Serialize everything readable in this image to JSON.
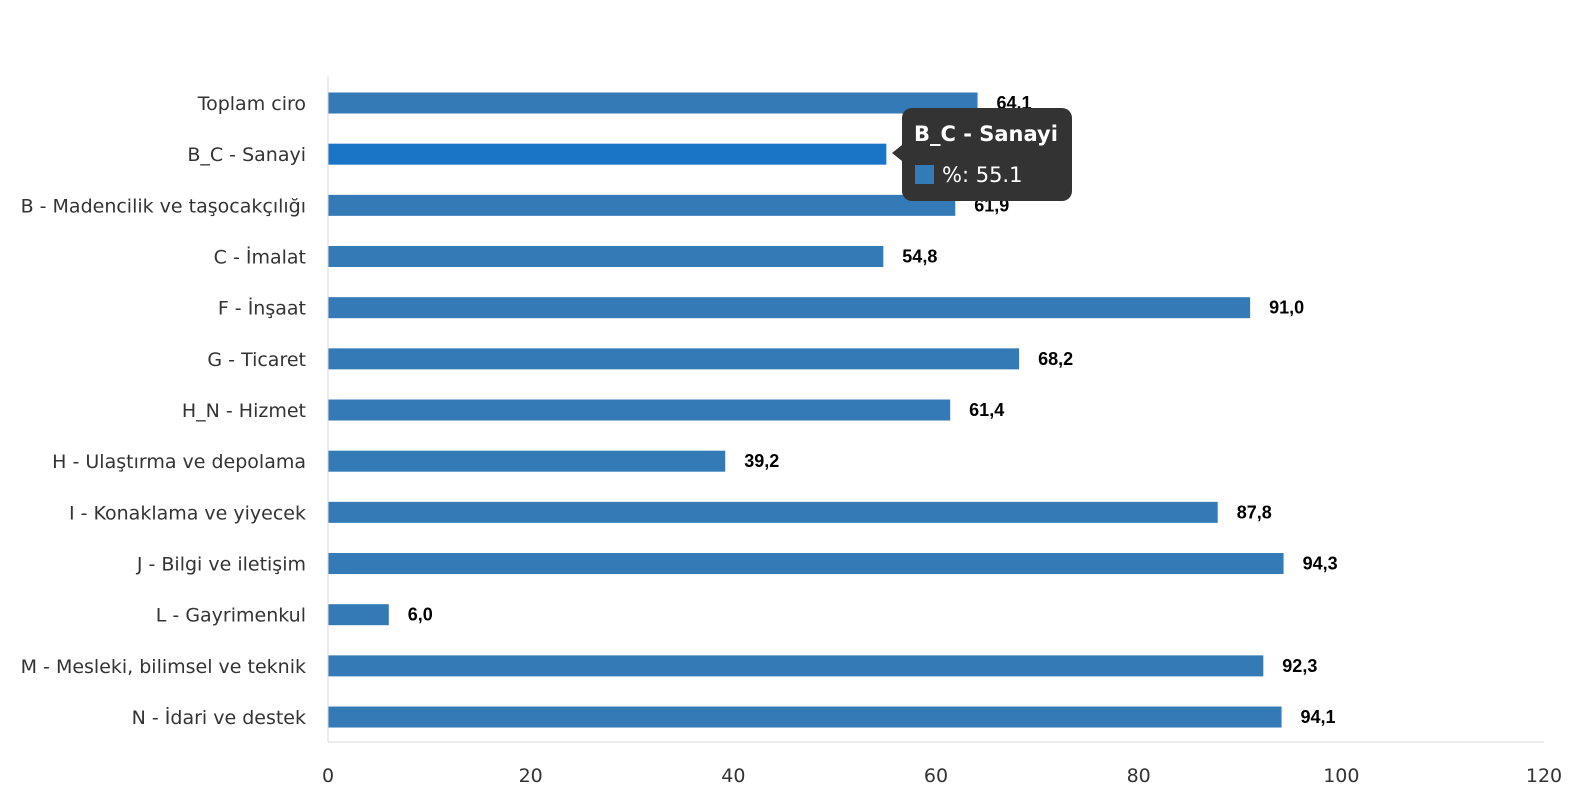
{
  "chart_data": {
    "type": "bar",
    "orientation": "horizontal",
    "categories": [
      "Toplam ciro",
      "B_C - Sanayi",
      "B - Madencilik ve taşocakçılığı",
      "C - İmalat",
      "F - İnşaat",
      "G - Ticaret",
      "H_N - Hizmet",
      "H - Ulaştırma ve depolama",
      "I - Konaklama ve yiyecek",
      "J - Bilgi ve iletişim",
      "L - Gayrimenkul",
      "M - Mesleki, bilimsel ve teknik",
      "N - İdari ve destek"
    ],
    "values": [
      64.1,
      55.1,
      61.9,
      54.8,
      91.0,
      68.2,
      61.4,
      39.2,
      87.8,
      94.3,
      6.0,
      92.3,
      94.1
    ],
    "value_labels": [
      "64,1",
      "55,1",
      "61,9",
      "54,8",
      "91,0",
      "68,2",
      "61,4",
      "39,2",
      "87,8",
      "94,3",
      "6,0",
      "92,3",
      "94,1"
    ],
    "xlim": [
      0,
      120
    ],
    "xticks": [
      0,
      20,
      40,
      60,
      80,
      100,
      120
    ],
    "grid": false,
    "title": "",
    "xlabel": "",
    "ylabel": "",
    "bar_color": "#337ab7",
    "highlight_color": "#1a75c7",
    "highlight_index": 1
  },
  "tooltip": {
    "title": "B_C - Sanayi",
    "text": "%: 55.1",
    "swatch_color": "#337ab7",
    "background": "#333333"
  }
}
